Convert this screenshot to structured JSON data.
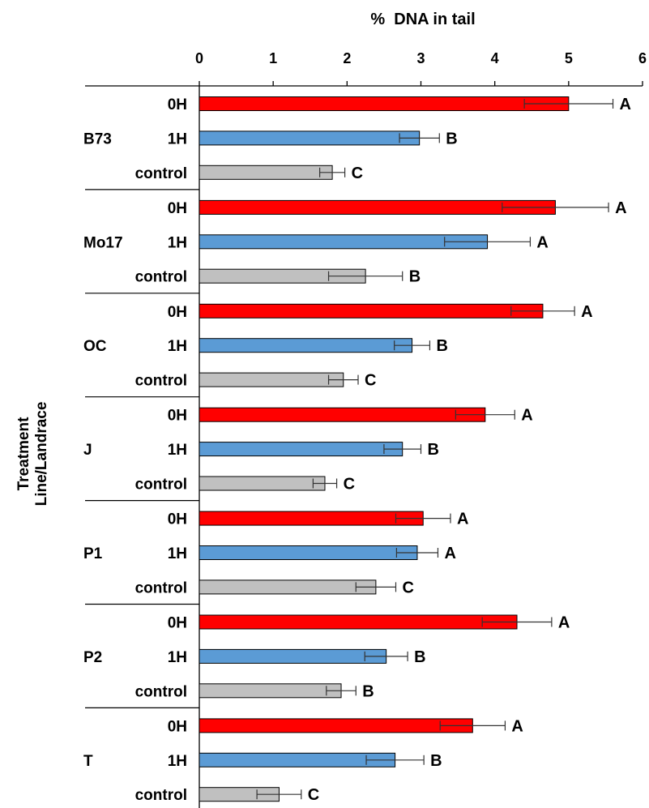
{
  "chart_data": {
    "type": "bar",
    "orientation": "horizontal",
    "title": "%  DNA in tail",
    "ylabel_lines": [
      "Treatment",
      "Line/Landrace"
    ],
    "xlim": [
      0,
      6
    ],
    "xticks": [
      "0",
      "1",
      "2",
      "3",
      "4",
      "5",
      "6"
    ],
    "x_axis_position": "top",
    "grid": false,
    "treatments": [
      "0H",
      "1H",
      "control"
    ],
    "colors": {
      "0H": "#ff0000",
      "1H": "#5b9bd5",
      "control": "#c0c0c0",
      "control_T": "#c0c0c0"
    },
    "groups": [
      {
        "name": "B73",
        "bars": [
          {
            "treatment": "0H",
            "value": 5.0,
            "error": 0.6,
            "letter": "A"
          },
          {
            "treatment": "1H",
            "value": 2.98,
            "error": 0.27,
            "letter": "B"
          },
          {
            "treatment": "control",
            "value": 1.8,
            "error": 0.17,
            "letter": "C"
          }
        ]
      },
      {
        "name": "Mo17",
        "bars": [
          {
            "treatment": "0H",
            "value": 4.82,
            "error": 0.72,
            "letter": "A"
          },
          {
            "treatment": "1H",
            "value": 3.9,
            "error": 0.58,
            "letter": "A"
          },
          {
            "treatment": "control",
            "value": 2.25,
            "error": 0.5,
            "letter": "B"
          }
        ]
      },
      {
        "name": "OC",
        "bars": [
          {
            "treatment": "0H",
            "value": 4.65,
            "error": 0.43,
            "letter": "A"
          },
          {
            "treatment": "1H",
            "value": 2.88,
            "error": 0.24,
            "letter": "B"
          },
          {
            "treatment": "control",
            "value": 1.95,
            "error": 0.2,
            "letter": "C"
          }
        ]
      },
      {
        "name": "J",
        "bars": [
          {
            "treatment": "0H",
            "value": 3.87,
            "error": 0.4,
            "letter": "A"
          },
          {
            "treatment": "1H",
            "value": 2.75,
            "error": 0.25,
            "letter": "B"
          },
          {
            "treatment": "control",
            "value": 1.7,
            "error": 0.16,
            "letter": "C"
          }
        ]
      },
      {
        "name": "P1",
        "bars": [
          {
            "treatment": "0H",
            "value": 3.03,
            "error": 0.37,
            "letter": "A"
          },
          {
            "treatment": "1H",
            "value": 2.95,
            "error": 0.28,
            "letter": "A"
          },
          {
            "treatment": "control",
            "value": 2.39,
            "error": 0.27,
            "letter": "C"
          }
        ]
      },
      {
        "name": "P2",
        "bars": [
          {
            "treatment": "0H",
            "value": 4.3,
            "error": 0.47,
            "letter": "A"
          },
          {
            "treatment": "1H",
            "value": 2.53,
            "error": 0.29,
            "letter": "B"
          },
          {
            "treatment": "control",
            "value": 1.92,
            "error": 0.2,
            "letter": "B"
          }
        ]
      },
      {
        "name": "T",
        "bars": [
          {
            "treatment": "0H",
            "value": 3.7,
            "error": 0.44,
            "letter": "A"
          },
          {
            "treatment": "1H",
            "value": 2.65,
            "error": 0.39,
            "letter": "B"
          },
          {
            "treatment": "control",
            "value": 1.08,
            "error": 0.3,
            "letter": "C"
          }
        ]
      }
    ]
  }
}
